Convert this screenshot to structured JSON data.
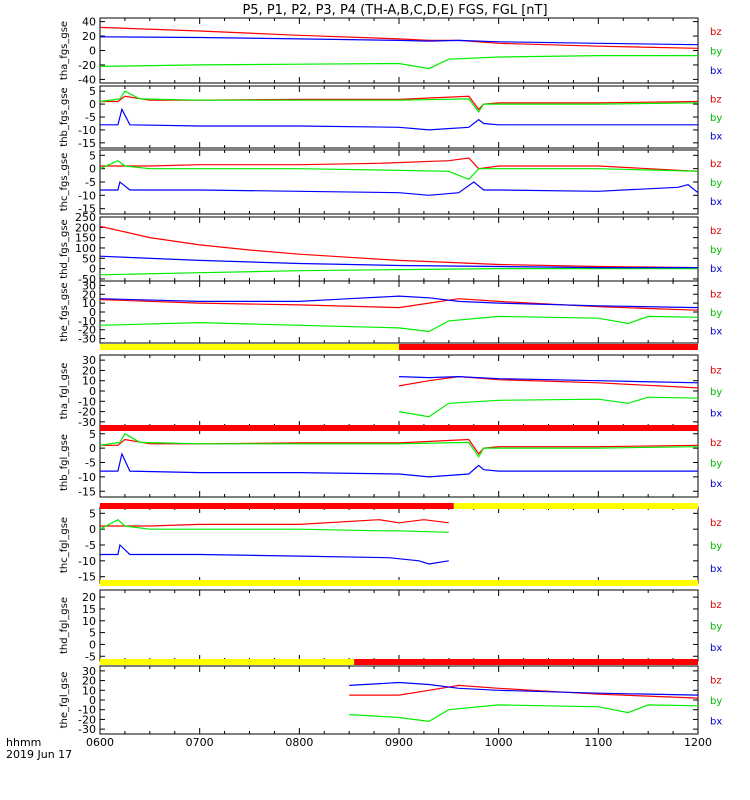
{
  "title": "P5, P1, P2, P3, P4 (TH-A,B,C,D,E) FGS, FGL [nT]",
  "footer": {
    "label": "hhmm",
    "date": "2019 Jun 17"
  },
  "x_ticks": [
    "0600",
    "0700",
    "0800",
    "0900",
    "1000",
    "1100",
    "1200"
  ],
  "legend": [
    {
      "label": "bz",
      "color": "#dd0000"
    },
    {
      "label": "by",
      "color": "#00bb00"
    },
    {
      "label": "bx",
      "color": "#0000cc"
    }
  ],
  "colors": {
    "red": "#ff0000",
    "green": "#00ee00",
    "blue": "#0000ff",
    "yellow": "#ffff00",
    "bar_red": "#ff0000"
  },
  "chart_data": {
    "type": "line",
    "x_range": [
      "0600",
      "1200"
    ],
    "panels": [
      {
        "name": "tha_fgs_gse",
        "ylim": [
          -45,
          45
        ],
        "ticks": [
          "40",
          "20",
          "0",
          "-20",
          "-40"
        ],
        "tick_vals": [
          40,
          20,
          0,
          -20,
          -40
        ],
        "series": [
          {
            "name": "bz",
            "x": [
              6.0,
              7.0,
              8.0,
              9.0,
              9.3,
              9.6,
              10.0,
              11.0,
              12.0
            ],
            "y": [
              32,
              27,
              21,
              16,
              14,
              14,
              10,
              6,
              3
            ]
          },
          {
            "name": "by",
            "x": [
              6.0,
              7.0,
              8.0,
              9.0,
              9.3,
              9.5,
              10.0,
              11.0,
              12.0
            ],
            "y": [
              -22,
              -20,
              -19,
              -18,
              -25,
              -12,
              -9,
              -7,
              -7
            ]
          },
          {
            "name": "bx",
            "x": [
              6.0,
              7.0,
              8.0,
              9.0,
              9.3,
              9.6,
              10.0,
              11.0,
              12.0
            ],
            "y": [
              19,
              18,
              16,
              14,
              13,
              14,
              12,
              10,
              8
            ]
          }
        ]
      },
      {
        "name": "thb_fgs_gse",
        "ylim": [
          -17,
          7
        ],
        "ticks": [
          "5",
          "0",
          "-5",
          "-10",
          "-15"
        ],
        "tick_vals": [
          5,
          0,
          -5,
          -10,
          -15
        ],
        "series": [
          {
            "name": "bz",
            "x": [
              6.0,
              6.18,
              6.25,
              6.5,
              7.0,
              8.0,
              9.0,
              9.7,
              9.8,
              9.85,
              10.0,
              11.0,
              12.0
            ],
            "y": [
              1,
              1,
              3,
              1.5,
              1.5,
              1.8,
              1.8,
              3,
              -2,
              0,
              0.5,
              0.5,
              1
            ]
          },
          {
            "name": "by",
            "x": [
              6.0,
              6.2,
              6.25,
              6.4,
              7.0,
              8.0,
              9.0,
              9.7,
              9.8,
              9.85,
              10.0,
              11.0,
              12.0
            ],
            "y": [
              1,
              2,
              5,
              2,
              1.5,
              1.5,
              1.5,
              2,
              -3,
              0,
              0,
              0,
              0.5
            ]
          },
          {
            "name": "bx",
            "x": [
              6.0,
              6.18,
              6.22,
              6.3,
              7.0,
              8.0,
              9.0,
              9.3,
              9.7,
              9.8,
              9.85,
              10.0,
              11.0,
              12.0
            ],
            "y": [
              -8,
              -8,
              -2,
              -8,
              -8.5,
              -8.5,
              -9,
              -10,
              -9,
              -6,
              -7.5,
              -8,
              -8,
              -8
            ]
          }
        ]
      },
      {
        "name": "thc_fgs_gse",
        "ylim": [
          -17,
          7
        ],
        "ticks": [
          "5",
          "0",
          "-5",
          "-10",
          "-15"
        ],
        "tick_vals": [
          5,
          0,
          -5,
          -10,
          -15
        ],
        "series": [
          {
            "name": "bz",
            "x": [
              6.0,
              6.2,
              6.5,
              7.0,
              8.0,
              8.8,
              9.5,
              9.7,
              9.75,
              9.8,
              10.0,
              11.0,
              12.0
            ],
            "y": [
              1,
              1,
              1,
              1.5,
              1.5,
              2,
              3,
              4,
              2,
              0,
              1,
              1,
              -1
            ]
          },
          {
            "name": "by",
            "x": [
              6.0,
              6.18,
              6.25,
              6.5,
              7.0,
              8.0,
              8.8,
              9.5,
              9.7,
              9.8,
              10.0,
              11.0,
              12.0
            ],
            "y": [
              0,
              3,
              1,
              0,
              0,
              0,
              -0.5,
              -1,
              -4,
              0,
              0,
              0,
              -1
            ]
          },
          {
            "name": "bx",
            "x": [
              6.0,
              6.18,
              6.2,
              6.3,
              7.0,
              8.0,
              9.0,
              9.3,
              9.6,
              9.75,
              9.85,
              10.0,
              11.0,
              11.8,
              11.9,
              12.0
            ],
            "y": [
              -8,
              -8,
              -5,
              -8,
              -8,
              -8.5,
              -9,
              -10,
              -9,
              -5,
              -8,
              -8,
              -8.5,
              -7,
              -6,
              -9
            ]
          }
        ]
      },
      {
        "name": "thd_fgs_gse",
        "ylim": [
          -60,
          250
        ],
        "ticks": [
          "250",
          "200",
          "150",
          "100",
          "50",
          "0",
          "-50"
        ],
        "tick_vals": [
          250,
          200,
          150,
          100,
          50,
          0,
          -50
        ],
        "series": [
          {
            "name": "bz",
            "x": [
              6.0,
              6.5,
              7.0,
              7.5,
              8.0,
              8.5,
              9.0,
              9.5,
              10.0,
              11.0,
              12.0
            ],
            "y": [
              205,
              150,
              115,
              90,
              70,
              55,
              40,
              30,
              20,
              10,
              5
            ]
          },
          {
            "name": "by",
            "x": [
              6.0,
              7.0,
              8.0,
              9.0,
              10.0,
              11.0,
              12.0
            ],
            "y": [
              -30,
              -20,
              -10,
              -5,
              0,
              0,
              0
            ]
          },
          {
            "name": "bx",
            "x": [
              6.0,
              7.0,
              8.0,
              9.0,
              10.0,
              11.0,
              12.0
            ],
            "y": [
              60,
              40,
              25,
              15,
              10,
              5,
              5
            ]
          }
        ]
      },
      {
        "name": "the_fgs_gse",
        "ylim": [
          -35,
          35
        ],
        "ticks": [
          "30",
          "20",
          "10",
          "0",
          "-10",
          "-20",
          "-30"
        ],
        "tick_vals": [
          30,
          20,
          10,
          0,
          -10,
          -20,
          -30
        ],
        "series": [
          {
            "name": "bz",
            "x": [
              6.0,
              7.0,
              8.0,
              9.0,
              9.3,
              9.6,
              10.0,
              11.0,
              11.5,
              12.0
            ],
            "y": [
              14,
              10,
              8,
              5,
              10,
              15,
              12,
              6,
              4,
              2
            ]
          },
          {
            "name": "by",
            "x": [
              6.0,
              7.0,
              8.0,
              9.0,
              9.3,
              9.5,
              10.0,
              11.0,
              11.3,
              11.5,
              12.0
            ],
            "y": [
              -15,
              -12,
              -15,
              -18,
              -22,
              -10,
              -5,
              -7,
              -13,
              -5,
              -6
            ]
          },
          {
            "name": "bx",
            "x": [
              6.0,
              7.0,
              8.0,
              8.5,
              9.0,
              9.3,
              9.6,
              10.0,
              11.0,
              12.0
            ],
            "y": [
              15,
              12,
              12,
              15,
              18,
              16,
              12,
              10,
              7,
              5
            ]
          }
        ]
      },
      {
        "name": "tha_fgl_gse",
        "ylim": [
          -35,
          35
        ],
        "ticks": [
          "30",
          "20",
          "10",
          "0",
          "-10",
          "-20",
          "-30"
        ],
        "tick_vals": [
          30,
          20,
          10,
          0,
          -10,
          -20,
          -30
        ],
        "series": [
          {
            "name": "bz",
            "x": [
              9.0,
              9.3,
              9.6,
              10.0,
              11.0,
              12.0
            ],
            "y": [
              5,
              10,
              14,
              11,
              8,
              3
            ]
          },
          {
            "name": "by",
            "x": [
              9.0,
              9.3,
              9.5,
              10.0,
              11.0,
              11.3,
              11.5,
              12.0
            ],
            "y": [
              -20,
              -25,
              -12,
              -9,
              -8,
              -12,
              -6,
              -7
            ]
          },
          {
            "name": "bx",
            "x": [
              9.0,
              9.3,
              9.6,
              10.0,
              11.0,
              12.0
            ],
            "y": [
              14,
              13,
              14,
              12,
              10,
              8
            ]
          }
        ]
      },
      {
        "name": "thb_fgl_gse",
        "ylim": [
          -17,
          7
        ],
        "ticks": [
          "5",
          "0",
          "-5",
          "-10",
          "-15"
        ],
        "tick_vals": [
          5,
          0,
          -5,
          -10,
          -15
        ],
        "series": [
          {
            "name": "bz",
            "x": [
              6.0,
              6.18,
              6.25,
              6.5,
              7.0,
              8.0,
              9.0,
              9.7,
              9.8,
              9.85,
              10.0,
              11.0,
              12.0
            ],
            "y": [
              1,
              1,
              3,
              1.5,
              1.5,
              1.8,
              1.8,
              3,
              -2,
              0,
              0.5,
              0.5,
              1
            ]
          },
          {
            "name": "by",
            "x": [
              6.0,
              6.2,
              6.25,
              6.4,
              7.0,
              8.0,
              9.0,
              9.7,
              9.8,
              9.85,
              10.0,
              11.0,
              12.0
            ],
            "y": [
              1,
              2,
              5,
              2,
              1.5,
              1.5,
              1.5,
              2,
              -3,
              0,
              0,
              0,
              0.5
            ]
          },
          {
            "name": "bx",
            "x": [
              6.0,
              6.18,
              6.22,
              6.3,
              7.0,
              8.0,
              9.0,
              9.3,
              9.7,
              9.8,
              9.85,
              10.0,
              11.0,
              12.0
            ],
            "y": [
              -8,
              -8,
              -2,
              -8,
              -8.5,
              -8.5,
              -9,
              -10,
              -9,
              -6,
              -7.5,
              -8,
              -8,
              -8
            ]
          }
        ]
      },
      {
        "name": "thc_fgl_gse",
        "ylim": [
          -17,
          7
        ],
        "ticks": [
          "5",
          "0",
          "-5",
          "-10",
          "-15"
        ],
        "tick_vals": [
          5,
          0,
          -5,
          -10,
          -15
        ],
        "series": [
          {
            "name": "bz",
            "x": [
              6.0,
              6.2,
              6.5,
              7.0,
              8.0,
              8.8,
              9.0,
              9.25,
              9.5
            ],
            "y": [
              1,
              1,
              1,
              1.5,
              1.5,
              3,
              2,
              3,
              2
            ]
          },
          {
            "name": "by",
            "x": [
              6.0,
              6.18,
              6.25,
              6.5,
              7.0,
              8.0,
              8.8,
              9.0,
              9.5
            ],
            "y": [
              0,
              3,
              1,
              0,
              0,
              0,
              -0.5,
              -0.5,
              -1
            ]
          },
          {
            "name": "bx",
            "x": [
              6.0,
              6.18,
              6.2,
              6.3,
              7.0,
              8.0,
              8.9,
              9.2,
              9.3,
              9.5
            ],
            "y": [
              -8,
              -8,
              -5,
              -8,
              -8,
              -8.5,
              -9,
              -10,
              -11,
              -10
            ]
          }
        ]
      },
      {
        "name": "thd_fgl_gse",
        "ylim": [
          -7,
          23
        ],
        "ticks": [
          "20",
          "15",
          "10",
          "5",
          "0",
          "-5"
        ],
        "tick_vals": [
          20,
          15,
          10,
          5,
          0,
          -5
        ],
        "series": []
      },
      {
        "name": "the_fgl_gse",
        "ylim": [
          -35,
          35
        ],
        "ticks": [
          "30",
          "20",
          "10",
          "0",
          "-10",
          "-20",
          "-30"
        ],
        "tick_vals": [
          30,
          20,
          10,
          0,
          -10,
          -20,
          -30
        ],
        "series": [
          {
            "name": "bz",
            "x": [
              8.5,
              9.0,
              9.3,
              9.6,
              10.0,
              11.0,
              11.5,
              12.0
            ],
            "y": [
              5,
              5,
              10,
              15,
              12,
              6,
              4,
              2
            ]
          },
          {
            "name": "by",
            "x": [
              8.5,
              9.0,
              9.3,
              9.5,
              10.0,
              11.0,
              11.3,
              11.5,
              12.0
            ],
            "y": [
              -15,
              -18,
              -22,
              -10,
              -5,
              -7,
              -13,
              -5,
              -6
            ]
          },
          {
            "name": "bx",
            "x": [
              8.5,
              9.0,
              9.3,
              9.6,
              10.0,
              11.0,
              12.0
            ],
            "y": [
              15,
              18,
              16,
              12,
              10,
              7,
              5
            ]
          }
        ]
      }
    ],
    "mode_bars": [
      {
        "after_panel": 4,
        "segments": [
          {
            "x": [
              6.0,
              9.0
            ],
            "color": "yellow"
          },
          {
            "x": [
              9.0,
              12.0
            ],
            "color": "red"
          }
        ]
      },
      {
        "after_panel": 5,
        "segments": [
          {
            "x": [
              6.0,
              12.0
            ],
            "color": "red"
          }
        ]
      },
      {
        "after_panel": 6,
        "segments": [
          {
            "x": [
              6.0,
              9.55
            ],
            "color": "red"
          },
          {
            "x": [
              9.55,
              12.0
            ],
            "color": "yellow"
          }
        ]
      },
      {
        "after_panel": 7,
        "segments": [
          {
            "x": [
              6.0,
              12.0
            ],
            "color": "yellow"
          }
        ]
      },
      {
        "after_panel": 8,
        "segments": [
          {
            "x": [
              6.0,
              8.55
            ],
            "color": "yellow"
          },
          {
            "x": [
              8.55,
              12.0
            ],
            "color": "red"
          }
        ]
      }
    ]
  }
}
